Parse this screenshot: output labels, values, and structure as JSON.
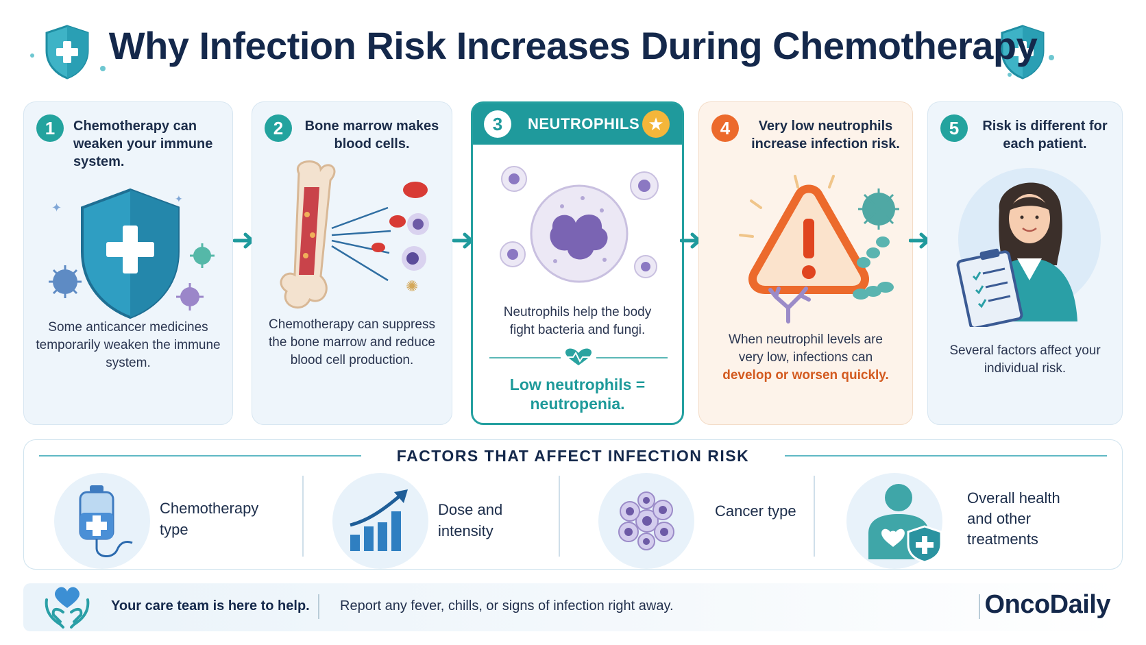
{
  "header": {
    "title": "Why Infection Risk Increases During Chemotherapy",
    "icon": "shield-plus-icon"
  },
  "steps": [
    {
      "number": "1",
      "title": "Chemotherapy can weaken your immune system.",
      "body": "Some anticancer medicines temporarily weaken the immune system.",
      "icon": "shield-with-viruses-icon"
    },
    {
      "number": "2",
      "title": "Bone marrow makes blood cells.",
      "body": "Chemotherapy can suppress the bone marrow and reduce blood cell production.",
      "icon": "bone-marrow-icon"
    },
    {
      "number": "3",
      "title": "NEUTROPHILS",
      "body": "Neutrophils help the body fight bacteria and fungi.",
      "highlight": "Low neutrophils = neutropenia.",
      "icon": "neutrophil-cell-icon"
    },
    {
      "number": "4",
      "title": "Very low neutrophils increase infection risk.",
      "body": "When neutrophil levels are very low, infections can",
      "emphasis": "develop or worsen quickly.",
      "icon": "warning-triangle-icon"
    },
    {
      "number": "5",
      "title": "Risk is different for each patient.",
      "body": "Several factors affect your individual risk.",
      "icon": "patient-clipboard-icon"
    }
  ],
  "factors": {
    "title": "FACTORS THAT AFFECT INFECTION RISK",
    "items": [
      {
        "label": "Chemotherapy type",
        "icon": "iv-bag-icon"
      },
      {
        "label": "Dose and intensity",
        "icon": "bar-chart-rising-icon"
      },
      {
        "label": "Cancer type",
        "icon": "cancer-cells-icon"
      },
      {
        "label": "Overall health and other treatments",
        "icon": "person-shield-icon"
      }
    ]
  },
  "footer": {
    "help": "Your care team is here to help.",
    "message": "Report any fever, chills, or signs of infection right away.",
    "brand": "OncoDaily",
    "icon": "heart-hands-icon"
  },
  "colors": {
    "navy": "#14284b",
    "teal": "#1f9a9c",
    "orange": "#ec6a2c",
    "card_bg": "#eef5fb"
  }
}
